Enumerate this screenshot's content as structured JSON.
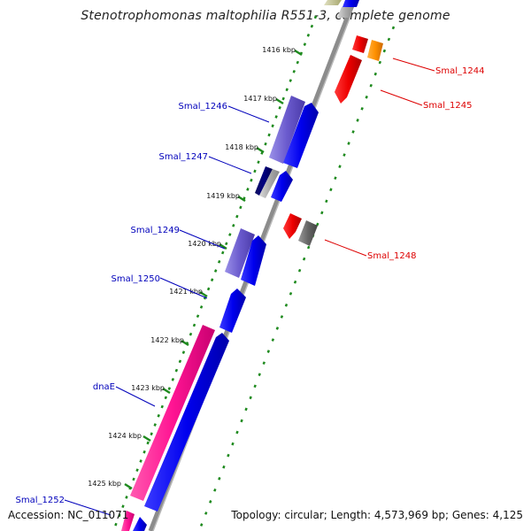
{
  "title": "Stenotrophomonas maltophilia R551-3, complete genome",
  "footer": {
    "accession": "Accession: NC_011071",
    "stats": "Topology: circular; Length: 4,573,969 bp; Genes: 4,125"
  },
  "ticks": [
    "1416 kbp",
    "1417 kbp",
    "1418 kbp",
    "1419 kbp",
    "1420 kbp",
    "1421 kbp",
    "1422 kbp",
    "1423 kbp",
    "1424 kbp",
    "1425 kbp"
  ],
  "gene_labels": [
    {
      "text": "Smal_1244",
      "strand": "reverse",
      "color": "#dd0000"
    },
    {
      "text": "Smal_1245",
      "strand": "reverse",
      "color": "#dd0000"
    },
    {
      "text": "Smal_1246",
      "strand": "forward",
      "color": "#0000bb"
    },
    {
      "text": "Smal_1247",
      "strand": "forward",
      "color": "#0000bb"
    },
    {
      "text": "Smal_1248",
      "strand": "reverse",
      "color": "#dd0000"
    },
    {
      "text": "Smal_1249",
      "strand": "forward",
      "color": "#0000bb"
    },
    {
      "text": "Smal_1250",
      "strand": "forward",
      "color": "#0000bb"
    },
    {
      "text": "dnaE",
      "strand": "forward",
      "color": "#0000bb"
    },
    {
      "text": "Smal_1252",
      "strand": "forward",
      "color": "#0000bb"
    }
  ],
  "colors": {
    "forward_cds": "#0000ee",
    "reverse_cds": "#ee0000",
    "gene_pink": "#ff1493",
    "gc_skew": "#1e8a1e",
    "backbone": "#8c8c8c"
  }
}
